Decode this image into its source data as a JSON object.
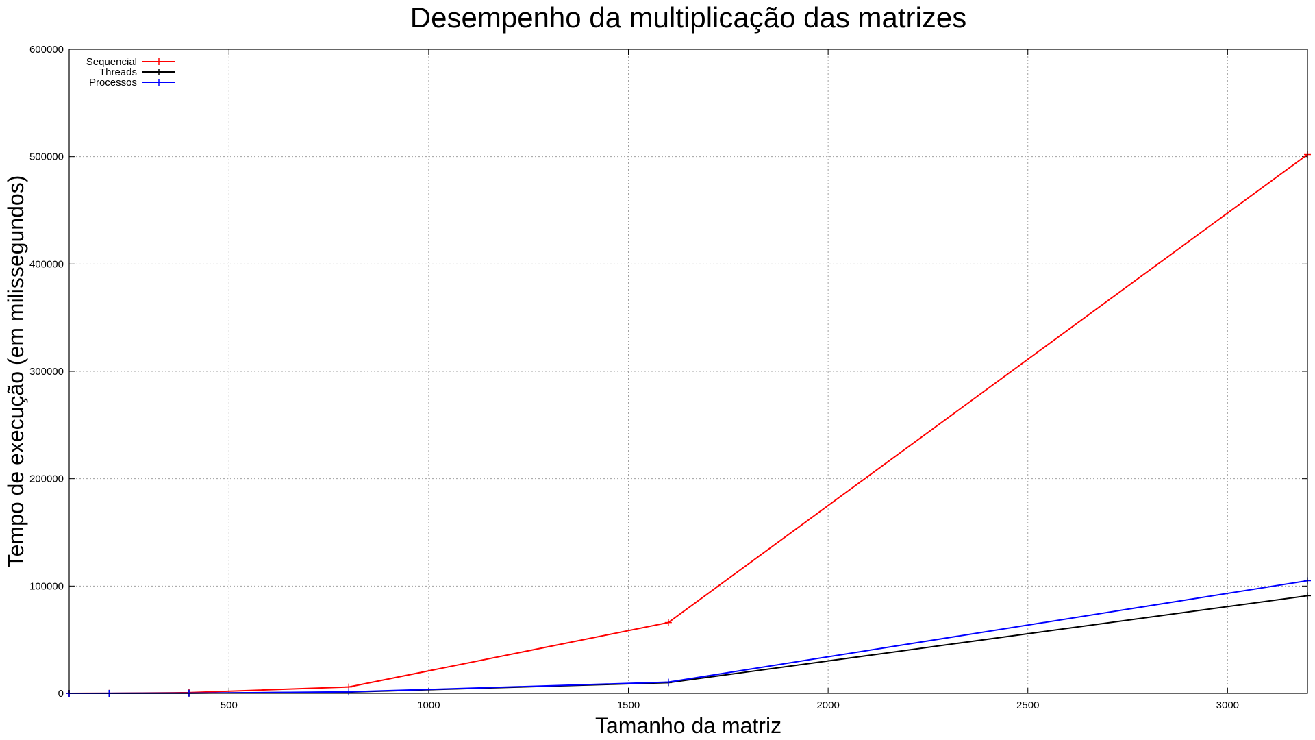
{
  "chart_data": {
    "type": "line",
    "title": "Desempenho da multiplicação das matrizes",
    "xlabel": "Tamanho da matriz",
    "ylabel": "Tempo de execução (em milissegundos)",
    "xlim": [
      100,
      3200
    ],
    "ylim": [
      0,
      600000
    ],
    "x_ticks": [
      500,
      1000,
      1500,
      2000,
      2500,
      3000
    ],
    "y_ticks": [
      0,
      100000,
      200000,
      300000,
      400000,
      500000,
      600000
    ],
    "grid": true,
    "legend_position": "top-left",
    "series": [
      {
        "name": "Sequencial",
        "color": "#ff0000",
        "x": [
          100,
          200,
          400,
          800,
          1600,
          3200
        ],
        "y": [
          20,
          100,
          700,
          6000,
          66000,
          502000
        ]
      },
      {
        "name": "Threads",
        "color": "#000000",
        "x": [
          100,
          200,
          400,
          800,
          1600,
          3200
        ],
        "y": [
          10,
          30,
          150,
          1200,
          10000,
          91000
        ]
      },
      {
        "name": "Processos",
        "color": "#0000ff",
        "x": [
          100,
          200,
          400,
          800,
          1600,
          3200
        ],
        "y": [
          10,
          40,
          180,
          1400,
          10500,
          105000
        ]
      }
    ]
  }
}
